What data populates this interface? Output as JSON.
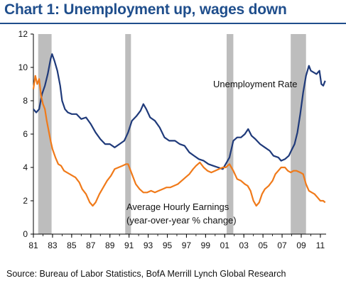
{
  "title": "Chart 1: Unemployment up, wages down",
  "source": "Source: Bureau of Labor Statistics, BofA Merrill Lynch Global Research",
  "colors": {
    "title": "#1f4e8c",
    "unemployment": "#1f3a7a",
    "earnings": "#f07a1a",
    "recession": "#bdbdbd"
  },
  "chart_data": {
    "type": "line",
    "xlim": [
      1981.0,
      2011.6
    ],
    "ylim": [
      0,
      12
    ],
    "yticks": [
      0,
      2,
      4,
      6,
      8,
      10,
      12
    ],
    "xtick_labels": [
      "81",
      "83",
      "85",
      "87",
      "89",
      "91",
      "93",
      "95",
      "97",
      "99",
      "01",
      "03",
      "05",
      "07",
      "09",
      "11"
    ],
    "grid": false,
    "recessions": [
      [
        1981.5,
        1982.9
      ],
      [
        1990.6,
        1991.2
      ],
      [
        2001.2,
        2001.9
      ],
      [
        2007.9,
        2009.5
      ]
    ],
    "series": [
      {
        "name": "Unemployment Rate",
        "color": "#1f3a7a",
        "points": [
          [
            1981.0,
            7.5
          ],
          [
            1981.3,
            7.3
          ],
          [
            1981.6,
            7.5
          ],
          [
            1981.9,
            8.4
          ],
          [
            1982.2,
            8.9
          ],
          [
            1982.5,
            9.6
          ],
          [
            1982.8,
            10.5
          ],
          [
            1982.95,
            10.8
          ],
          [
            1983.2,
            10.4
          ],
          [
            1983.5,
            9.8
          ],
          [
            1983.8,
            8.9
          ],
          [
            1984.0,
            8.0
          ],
          [
            1984.3,
            7.5
          ],
          [
            1984.6,
            7.3
          ],
          [
            1985.0,
            7.2
          ],
          [
            1985.5,
            7.2
          ],
          [
            1986.0,
            6.9
          ],
          [
            1986.5,
            7.0
          ],
          [
            1987.0,
            6.6
          ],
          [
            1987.5,
            6.1
          ],
          [
            1988.0,
            5.7
          ],
          [
            1988.5,
            5.4
          ],
          [
            1989.0,
            5.4
          ],
          [
            1989.5,
            5.2
          ],
          [
            1990.0,
            5.4
          ],
          [
            1990.5,
            5.6
          ],
          [
            1990.9,
            6.1
          ],
          [
            1991.3,
            6.8
          ],
          [
            1991.8,
            7.1
          ],
          [
            1992.2,
            7.4
          ],
          [
            1992.5,
            7.8
          ],
          [
            1992.8,
            7.5
          ],
          [
            1993.2,
            7.0
          ],
          [
            1993.7,
            6.8
          ],
          [
            1994.2,
            6.4
          ],
          [
            1994.7,
            5.8
          ],
          [
            1995.2,
            5.6
          ],
          [
            1995.8,
            5.6
          ],
          [
            1996.3,
            5.4
          ],
          [
            1996.8,
            5.3
          ],
          [
            1997.3,
            4.9
          ],
          [
            1997.8,
            4.7
          ],
          [
            1998.3,
            4.5
          ],
          [
            1998.8,
            4.4
          ],
          [
            1999.3,
            4.2
          ],
          [
            1999.8,
            4.1
          ],
          [
            2000.3,
            4.0
          ],
          [
            2000.8,
            3.9
          ],
          [
            2001.2,
            4.3
          ],
          [
            2001.5,
            4.6
          ],
          [
            2001.9,
            5.6
          ],
          [
            2002.3,
            5.8
          ],
          [
            2002.7,
            5.8
          ],
          [
            2003.1,
            6.0
          ],
          [
            2003.45,
            6.3
          ],
          [
            2003.8,
            5.9
          ],
          [
            2004.2,
            5.7
          ],
          [
            2004.7,
            5.4
          ],
          [
            2005.2,
            5.2
          ],
          [
            2005.7,
            5.0
          ],
          [
            2006.1,
            4.7
          ],
          [
            2006.6,
            4.6
          ],
          [
            2006.9,
            4.4
          ],
          [
            2007.3,
            4.5
          ],
          [
            2007.7,
            4.7
          ],
          [
            2007.95,
            5.0
          ],
          [
            2008.3,
            5.4
          ],
          [
            2008.6,
            6.1
          ],
          [
            2008.9,
            7.2
          ],
          [
            2009.2,
            8.5
          ],
          [
            2009.5,
            9.5
          ],
          [
            2009.8,
            10.1
          ],
          [
            2010.0,
            9.8
          ],
          [
            2010.3,
            9.7
          ],
          [
            2010.6,
            9.6
          ],
          [
            2010.9,
            9.8
          ],
          [
            2011.1,
            9.0
          ],
          [
            2011.3,
            8.9
          ],
          [
            2011.5,
            9.2
          ]
        ]
      },
      {
        "name": "Average Hourly Earnings (year-over-year % change)",
        "color": "#f07a1a",
        "points": [
          [
            1981.0,
            8.7
          ],
          [
            1981.2,
            9.5
          ],
          [
            1981.4,
            9.0
          ],
          [
            1981.6,
            9.3
          ],
          [
            1981.8,
            8.3
          ],
          [
            1982.0,
            7.8
          ],
          [
            1982.2,
            7.5
          ],
          [
            1982.4,
            6.8
          ],
          [
            1982.6,
            6.2
          ],
          [
            1982.8,
            5.6
          ],
          [
            1983.0,
            5.1
          ],
          [
            1983.3,
            4.6
          ],
          [
            1983.6,
            4.2
          ],
          [
            1983.9,
            4.1
          ],
          [
            1984.2,
            3.8
          ],
          [
            1984.5,
            3.7
          ],
          [
            1984.8,
            3.6
          ],
          [
            1985.1,
            3.5
          ],
          [
            1985.4,
            3.4
          ],
          [
            1985.8,
            3.1
          ],
          [
            1986.1,
            2.7
          ],
          [
            1986.5,
            2.4
          ],
          [
            1986.9,
            1.9
          ],
          [
            1987.2,
            1.7
          ],
          [
            1987.5,
            1.9
          ],
          [
            1987.9,
            2.4
          ],
          [
            1988.3,
            2.8
          ],
          [
            1988.7,
            3.2
          ],
          [
            1989.1,
            3.5
          ],
          [
            1989.5,
            3.9
          ],
          [
            1989.9,
            4.0
          ],
          [
            1990.3,
            4.1
          ],
          [
            1990.7,
            4.2
          ],
          [
            1990.9,
            4.2
          ],
          [
            1991.3,
            3.6
          ],
          [
            1991.7,
            3.0
          ],
          [
            1992.1,
            2.7
          ],
          [
            1992.5,
            2.5
          ],
          [
            1992.9,
            2.5
          ],
          [
            1993.3,
            2.6
          ],
          [
            1993.7,
            2.5
          ],
          [
            1994.1,
            2.6
          ],
          [
            1994.5,
            2.7
          ],
          [
            1994.9,
            2.8
          ],
          [
            1995.3,
            2.8
          ],
          [
            1995.7,
            2.9
          ],
          [
            1996.1,
            3.0
          ],
          [
            1996.5,
            3.2
          ],
          [
            1996.9,
            3.4
          ],
          [
            1997.3,
            3.6
          ],
          [
            1997.7,
            3.9
          ],
          [
            1998.0,
            4.1
          ],
          [
            1998.4,
            4.3
          ],
          [
            1998.8,
            4.0
          ],
          [
            1999.2,
            3.8
          ],
          [
            1999.6,
            3.7
          ],
          [
            2000.0,
            3.8
          ],
          [
            2000.4,
            3.9
          ],
          [
            2000.8,
            4.0
          ],
          [
            2001.1,
            4.0
          ],
          [
            2001.5,
            4.2
          ],
          [
            2001.9,
            3.8
          ],
          [
            2002.3,
            3.3
          ],
          [
            2002.7,
            3.2
          ],
          [
            2003.1,
            3.0
          ],
          [
            2003.4,
            2.9
          ],
          [
            2003.7,
            2.6
          ],
          [
            2004.0,
            2.0
          ],
          [
            2004.3,
            1.7
          ],
          [
            2004.6,
            1.9
          ],
          [
            2004.9,
            2.4
          ],
          [
            2005.2,
            2.7
          ],
          [
            2005.6,
            2.9
          ],
          [
            2006.0,
            3.2
          ],
          [
            2006.3,
            3.6
          ],
          [
            2006.6,
            3.8
          ],
          [
            2006.9,
            4.0
          ],
          [
            2007.3,
            4.0
          ],
          [
            2007.6,
            3.8
          ],
          [
            2007.9,
            3.7
          ],
          [
            2008.2,
            3.8
          ],
          [
            2008.5,
            3.8
          ],
          [
            2008.9,
            3.7
          ],
          [
            2009.2,
            3.6
          ],
          [
            2009.5,
            3.0
          ],
          [
            2009.8,
            2.6
          ],
          [
            2010.1,
            2.5
          ],
          [
            2010.4,
            2.4
          ],
          [
            2010.7,
            2.2
          ],
          [
            2011.0,
            2.0
          ],
          [
            2011.3,
            2.0
          ],
          [
            2011.5,
            1.9
          ]
        ]
      }
    ],
    "annotations": {
      "unemployment_label": "Unemployment Rate",
      "earnings_label_line1": "Average Hourly Earnings",
      "earnings_label_line2": "(year-over-year % change)"
    }
  }
}
